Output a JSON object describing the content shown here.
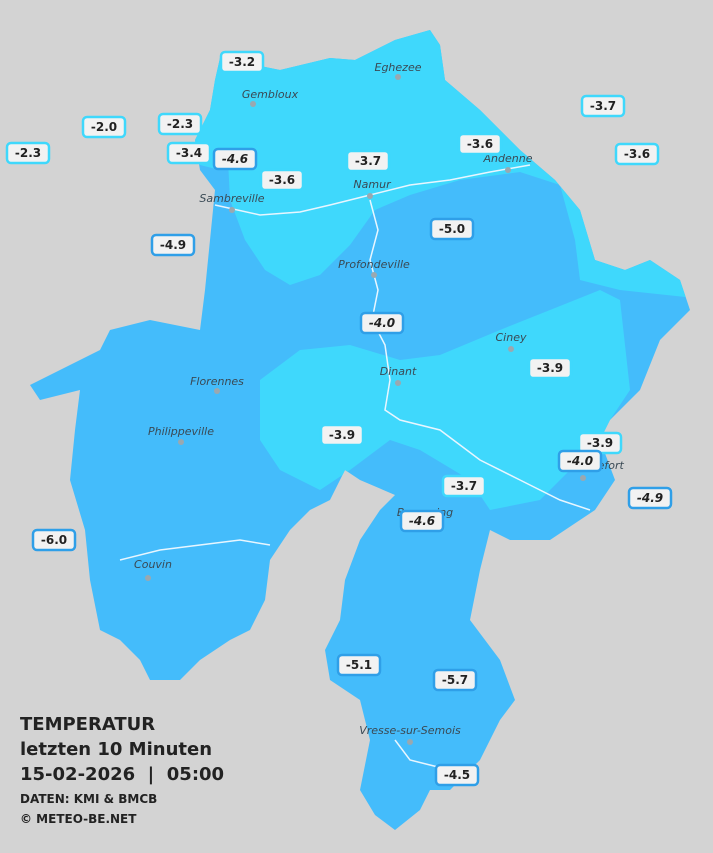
{
  "title": "TEMPERATUR",
  "subtitle": "letzten 10 Minuten",
  "datetime": "15-02-2026  |  05:00",
  "source": "DATEN: KMI & BMCB",
  "copyright": "© METEO-BE.NET",
  "towns": [
    "Eghezee",
    "Gembloux",
    "Andenne",
    "Namur",
    "Sambreville",
    "Profondeville",
    "Ciney",
    "Florennes",
    "Dinant",
    "Philippeville",
    "Rochefort",
    "Beauraing",
    "Couvin",
    "Vresse-sur-Semois"
  ],
  "temperatures": [
    "-3.2",
    "-2.0",
    "-2.3",
    "-2.3",
    "-3.4",
    "-4.6",
    "-3.6",
    "-3.7",
    "-3.6",
    "-3.7",
    "-3.6",
    "-4.9",
    "-5.0",
    "-4.0",
    "-3.9",
    "-3.9",
    "-3.9",
    "-4.0",
    "-3.7",
    "-4.9",
    "-4.6",
    "-6.0",
    "-5.1",
    "-5.7",
    "-4.5"
  ]
}
